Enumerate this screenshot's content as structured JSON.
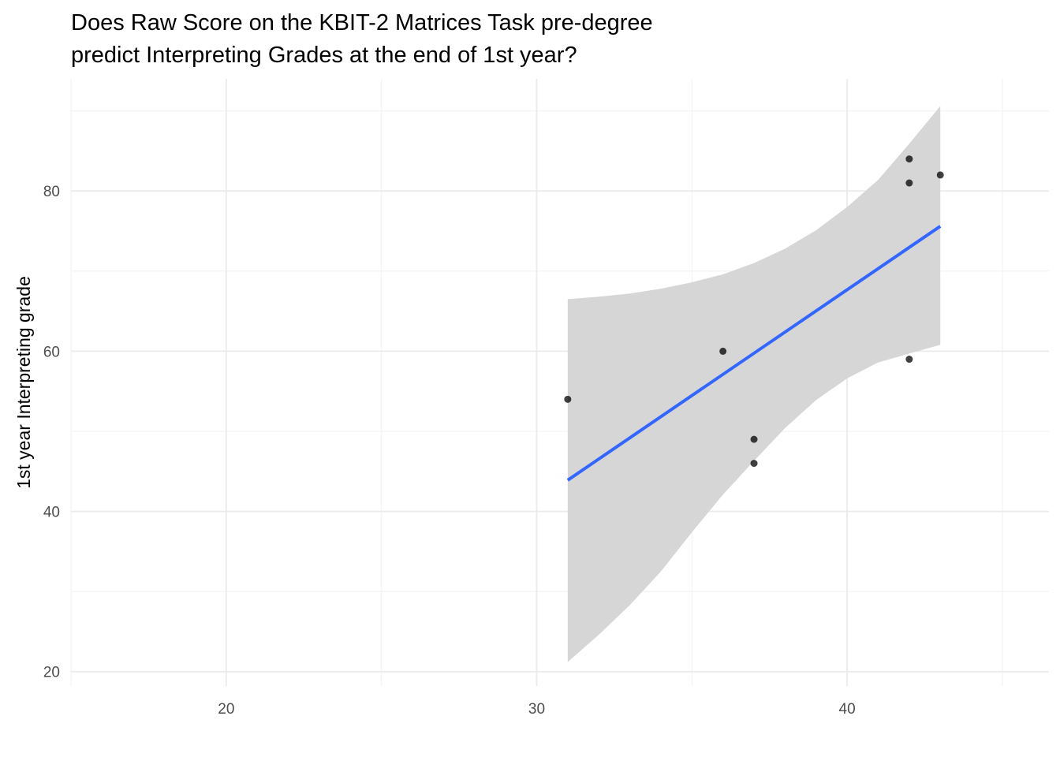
{
  "chart_data": {
    "type": "scatter",
    "title": [
      "Does Raw Score on the KBIT-2 Matrices Task pre-degree",
      "predict Interpreting Grades at the end of 1st year?"
    ],
    "xlabel": "",
    "ylabel": "1st year Interpreting grade",
    "xlim": [
      15,
      46.5
    ],
    "ylim": [
      18.2,
      94
    ],
    "x_ticks": [
      20,
      30,
      40
    ],
    "y_ticks": [
      20,
      40,
      60,
      80
    ],
    "x_minor": [
      15,
      25,
      35,
      45
    ],
    "y_minor": [
      30,
      50,
      70,
      90
    ],
    "grid": true,
    "points": [
      {
        "x": 31,
        "y": 54
      },
      {
        "x": 36,
        "y": 60
      },
      {
        "x": 37,
        "y": 49
      },
      {
        "x": 37,
        "y": 46
      },
      {
        "x": 42,
        "y": 84
      },
      {
        "x": 42,
        "y": 81
      },
      {
        "x": 42,
        "y": 59
      },
      {
        "x": 43,
        "y": 82
      }
    ],
    "fit": {
      "method": "lm",
      "line": [
        [
          31,
          43.9
        ],
        [
          43,
          75.6
        ]
      ],
      "ci_upper": [
        [
          31,
          66.5
        ],
        [
          32,
          66.8
        ],
        [
          33,
          67.2
        ],
        [
          34,
          67.8
        ],
        [
          35,
          68.6
        ],
        [
          36,
          69.6
        ],
        [
          37,
          71.0
        ],
        [
          38,
          72.8
        ],
        [
          39,
          75.1
        ],
        [
          40,
          78.0
        ],
        [
          41,
          81.4
        ],
        [
          42,
          85.9
        ],
        [
          43,
          90.6
        ]
      ],
      "ci_lower": [
        [
          31,
          21.2
        ],
        [
          32,
          24.6
        ],
        [
          33,
          28.3
        ],
        [
          34,
          32.5
        ],
        [
          35,
          37.4
        ],
        [
          36,
          42.1
        ],
        [
          37,
          46.3
        ],
        [
          38,
          50.4
        ],
        [
          39,
          53.9
        ],
        [
          40,
          56.6
        ],
        [
          41,
          58.6
        ],
        [
          42,
          59.7
        ],
        [
          43,
          60.8
        ]
      ]
    },
    "colors": {
      "points": "#000000",
      "line": "#3366ff",
      "band": "#d6d6d6",
      "grid_major": "#ebebeb",
      "grid_minor": "#f3f3f3",
      "tick_text": "#4d4d4d"
    }
  }
}
